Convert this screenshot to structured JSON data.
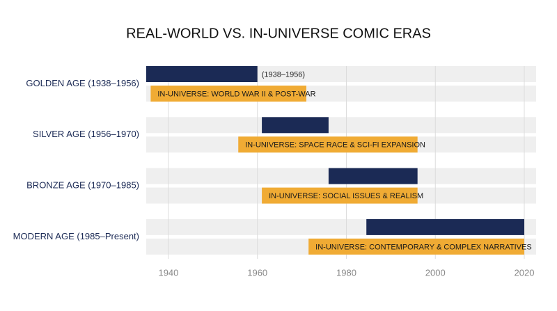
{
  "chart_data": {
    "type": "timeline",
    "title": "REAL-WORLD VS. IN-UNIVERSE COMIC ERAS",
    "categories": [
      "GOLDEN AGE (1938–1956)",
      "SILVER AGE (1956–1970)",
      "BRONZE AGE (1970–1985)",
      "MODERN AGE (1985–Present)"
    ],
    "series": [
      {
        "color": "#1b2a55",
        "starts": [
          1935,
          1961,
          1976,
          1984.5
        ],
        "ends": [
          1960,
          1976,
          1996,
          2020
        ]
      },
      {
        "color": "#f0ab34",
        "starts": [
          1936,
          1955.7,
          1961,
          1971.5
        ],
        "ends": [
          1971,
          1996,
          1996,
          2020
        ],
        "value_labels": [
          "IN-UNIVERSE: WORLD WAR II & POST-WAR",
          "IN-UNIVERSE: SPACE RACE & SCI-FI EXPANSION",
          "IN-UNIVERSE: SOCIAL ISSUES & REALISM",
          "IN-UNIVERSE: CONTEMPORARY & COMPLEX NARRATIVES"
        ]
      }
    ],
    "annotation": "(1938–1956)",
    "xlim": [
      1935,
      2020
    ],
    "xticks": [
      1940,
      1960,
      1980,
      2000,
      2020
    ],
    "grid": true
  }
}
